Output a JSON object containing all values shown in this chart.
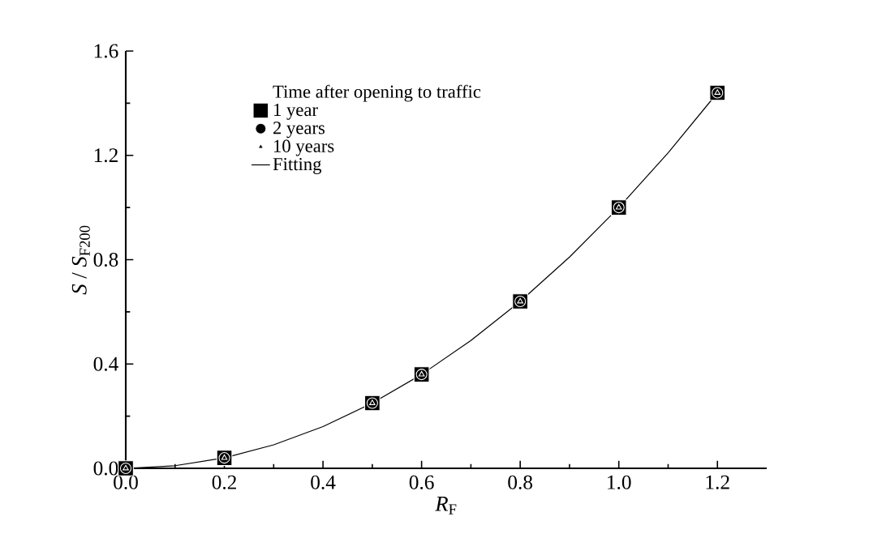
{
  "chart_data": {
    "type": "scatter",
    "xlabel": "*R*$_{F}$",
    "ylabel": "*S* / *S*$_{F200}$",
    "legend_title": "Time after opening to traffic",
    "x": [
      0,
      0.2,
      0.5,
      0.6,
      0.8,
      1.0,
      1.2
    ],
    "series": [
      {
        "name": "1 year",
        "color": "#000000",
        "marker": "square",
        "values": [
          0,
          0.04,
          0.25,
          0.36,
          0.64,
          1.0,
          1.44
        ]
      },
      {
        "name": "2 years",
        "color": "#000000",
        "marker": "circle",
        "values": [
          0,
          0.04,
          0.25,
          0.36,
          0.64,
          1.0,
          1.44
        ]
      },
      {
        "name": "10 years",
        "color": "#000000",
        "marker": "triangle",
        "values": [
          0,
          0.04,
          0.25,
          0.36,
          0.64,
          1.0,
          1.44
        ]
      },
      {
        "name": "Fitting",
        "type": "line",
        "color": "#000000",
        "marker": "none",
        "line_style": "solid",
        "x": [
          0,
          0.1,
          0.2,
          0.3,
          0.4,
          0.5,
          0.6,
          0.7,
          0.8,
          0.9,
          1.0,
          1.1,
          1.2
        ],
        "values": [
          0,
          0.01,
          0.04,
          0.09,
          0.16,
          0.25,
          0.36,
          0.49,
          0.64,
          0.81,
          1.0,
          1.21,
          1.44
        ]
      }
    ],
    "xlim": [
      0,
      1.3
    ],
    "ylim": [
      0,
      1.6
    ],
    "xticks": [
      "0.0",
      0.2,
      0.4,
      0.6,
      0.8,
      "1.0",
      1.2
    ],
    "yticks": [
      "0.0",
      0.4,
      0.8,
      1.2,
      1.6
    ],
    "legend": "top left",
    "grid": false
  }
}
